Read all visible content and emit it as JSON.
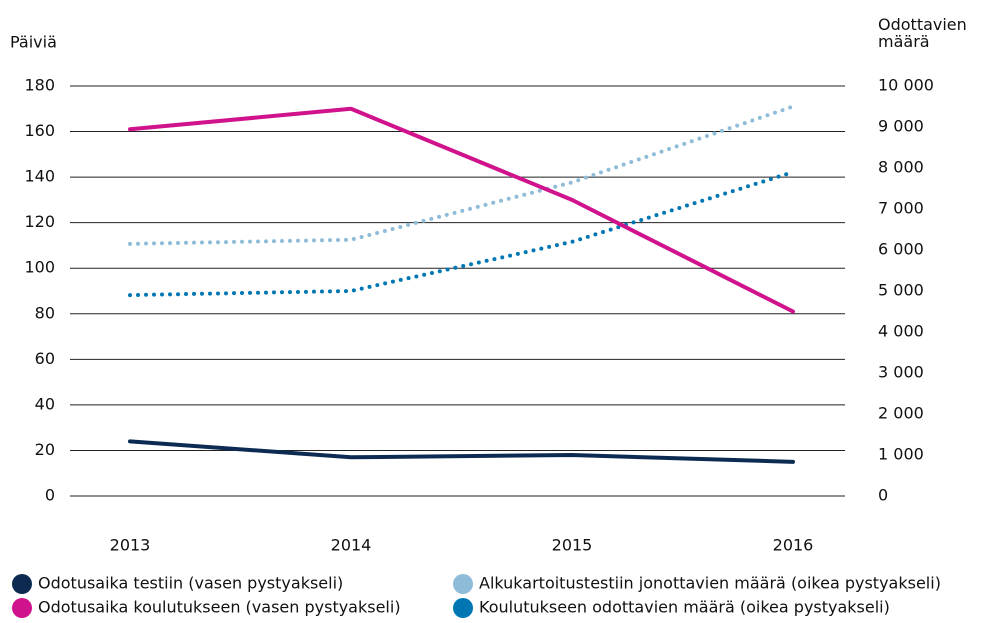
{
  "chart_data": {
    "type": "line",
    "ylabel": "Päiviä",
    "y2label": "Odottavien määrä",
    "categories": [
      "2013",
      "2014",
      "2015",
      "2016"
    ],
    "ylim": [
      0,
      180
    ],
    "yticks": [
      0,
      20,
      40,
      60,
      80,
      100,
      120,
      140,
      160,
      180
    ],
    "y2lim": [
      0,
      10000
    ],
    "y2ticks": [
      0,
      {
        "value": 1000,
        "label": "1 000"
      },
      {
        "value": 2000,
        "label": "2 000"
      },
      {
        "value": 3000,
        "label": "3 000"
      },
      {
        "value": 4000,
        "label": "4 000"
      },
      {
        "value": 5000,
        "label": "5 000"
      },
      {
        "value": 6000,
        "label": "6 000"
      },
      {
        "value": 7000,
        "label": "7 000"
      },
      {
        "value": 8000,
        "label": "8 000"
      },
      {
        "value": 9000,
        "label": "9 000"
      },
      {
        "value": 10000,
        "label": "10 000"
      }
    ],
    "grid": true,
    "series": [
      {
        "name": "Odotusaika testiin (vasen pystyakseli)",
        "color": "#0d2b52",
        "style": "solid",
        "values": [
          24,
          17,
          18,
          15
        ]
      },
      {
        "name": "Odotusaika koulutukseen (vasen pystyakseli)",
        "color": "#d0138c",
        "style": "solid",
        "values": [
          161,
          170,
          130,
          81
        ]
      },
      {
        "name": "Alkukartoitustestiin jonottavien määrä (oikea pystyakseli)",
        "color": "#8fbcd8",
        "style": "dotted",
        "axis": "y2",
        "values": [
          6150,
          6250,
          7650,
          9500
        ]
      },
      {
        "name": "Koulutukseen odottavien määrä (oikea pystyakseli)",
        "color": "#0077b3",
        "style": "dotted",
        "axis": "y2",
        "values": [
          4900,
          5000,
          6200,
          7900
        ]
      }
    ]
  }
}
